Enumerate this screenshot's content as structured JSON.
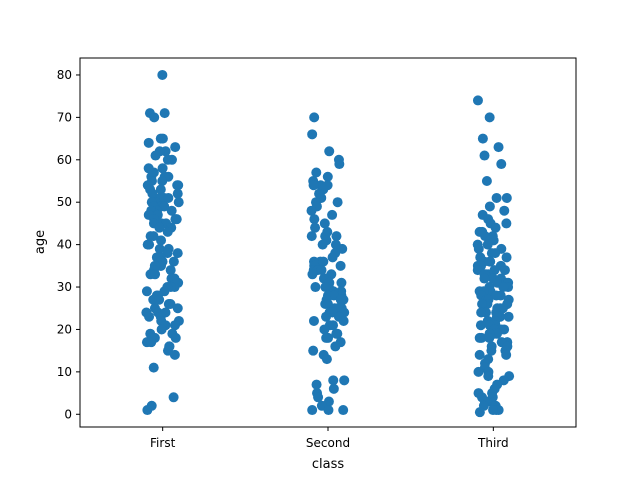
{
  "chart_data": {
    "type": "scatter",
    "subtype": "strip",
    "title": "",
    "xlabel": "class",
    "ylabel": "age",
    "categories": [
      "First",
      "Second",
      "Third"
    ],
    "yticks": [
      0,
      10,
      20,
      30,
      40,
      50,
      60,
      70,
      80
    ],
    "ylim": [
      -3,
      84
    ],
    "grid": false,
    "marker_color": "#1f77b4",
    "series": [
      {
        "category": "First",
        "values": [
          80,
          71,
          71,
          70,
          65,
          65,
          64,
          63,
          62,
          62,
          61,
          60,
          60,
          58,
          58,
          57,
          56,
          56,
          56,
          55,
          55,
          54,
          54,
          54,
          53,
          53,
          52,
          52,
          51,
          51,
          51,
          50,
          50,
          50,
          49,
          49,
          49,
          48,
          48,
          48,
          47,
          47,
          47,
          46,
          46,
          46,
          45,
          45,
          45,
          44,
          44,
          43,
          42,
          42,
          41,
          40,
          40,
          39,
          39,
          38,
          38,
          37,
          37,
          36,
          36,
          36,
          35,
          35,
          35,
          34,
          34,
          33,
          33,
          32,
          32,
          31,
          31,
          30,
          30,
          30,
          29,
          29,
          28,
          28,
          27,
          27,
          26,
          26,
          25,
          25,
          24,
          24,
          24,
          23,
          23,
          22,
          22,
          21,
          21,
          20,
          19,
          19,
          18,
          18,
          17,
          17,
          16,
          16,
          15,
          14,
          11,
          4,
          2,
          1
        ]
      },
      {
        "category": "Second",
        "values": [
          70,
          66,
          62,
          60,
          59,
          57,
          56,
          55,
          54,
          54,
          54,
          53,
          52,
          51,
          50,
          50,
          49,
          48,
          47,
          46,
          45,
          44,
          43,
          42,
          42,
          42,
          41,
          40,
          40,
          39,
          38,
          37,
          36,
          36,
          36,
          35,
          35,
          34,
          34,
          34,
          33,
          33,
          32,
          32,
          31,
          31,
          30,
          30,
          30,
          29,
          29,
          28,
          28,
          28,
          27,
          27,
          27,
          26,
          26,
          25,
          25,
          25,
          24,
          24,
          24,
          23,
          23,
          22,
          22,
          21,
          21,
          20,
          19,
          19,
          18,
          18,
          17,
          16,
          15,
          14,
          13,
          8,
          8,
          7,
          6,
          5,
          4,
          3,
          2,
          1,
          1,
          1
        ]
      },
      {
        "category": "Third",
        "values": [
          74,
          70,
          65,
          63,
          61,
          59,
          55,
          51,
          51,
          49,
          48,
          47,
          46,
          45,
          45,
          44,
          43,
          43,
          42,
          42,
          41,
          41,
          40,
          40,
          39,
          39,
          38,
          38,
          37,
          37,
          36,
          36,
          36,
          35,
          35,
          35,
          34,
          34,
          34,
          33,
          33,
          33,
          32,
          32,
          32,
          31,
          31,
          31,
          30,
          30,
          30,
          29,
          29,
          29,
          28,
          28,
          28,
          27,
          27,
          27,
          26,
          26,
          26,
          25,
          25,
          25,
          24,
          24,
          24,
          23,
          23,
          23,
          22,
          22,
          22,
          21,
          21,
          21,
          20,
          20,
          20,
          19,
          19,
          19,
          18,
          18,
          18,
          17,
          17,
          16,
          16,
          15,
          15,
          14,
          14,
          13,
          12,
          11,
          10,
          10,
          9,
          9,
          8,
          7,
          6,
          5,
          5,
          4,
          4,
          3,
          3,
          2,
          2,
          2,
          1,
          1,
          1,
          0.5
        ]
      }
    ]
  }
}
